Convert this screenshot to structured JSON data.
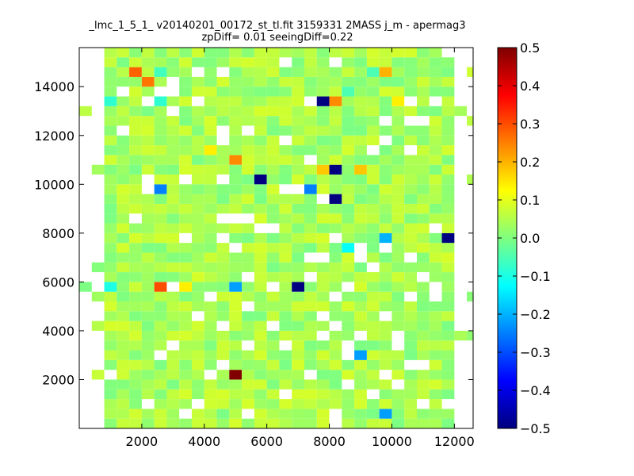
{
  "chart_data": {
    "type": "heatmap",
    "title_line1": "_lmc_1_5_1_ v20140201_00172_st_tl.fit 3159331 2MASS j_m - apermag3",
    "title_line2": "zpDiff= 0.01 seeingDiff=0.22",
    "xlabel": "",
    "ylabel": "",
    "xlim": [
      0,
      12600
    ],
    "ylim": [
      0,
      15600
    ],
    "xticks": [
      2000,
      4000,
      6000,
      8000,
      10000,
      12000
    ],
    "yticks": [
      2000,
      4000,
      6000,
      8000,
      10000,
      12000,
      14000
    ],
    "colorbar": {
      "colormap": "jet",
      "vmin": -0.5,
      "vmax": 0.5,
      "ticks": [
        -0.5,
        -0.4,
        -0.3,
        -0.2,
        -0.1,
        0.0,
        0.1,
        0.2,
        0.3,
        0.4,
        0.5
      ],
      "tick_labels": [
        "−0.5",
        "−0.4",
        "−0.3",
        "−0.2",
        "−0.1",
        "0.0",
        "0.1",
        "0.2",
        "0.3",
        "0.4",
        "0.5"
      ]
    },
    "bin_width": 400,
    "bin_height": 400,
    "x0": 0,
    "y0": 0,
    "ncols": 32,
    "nrows": 39,
    "grid": false,
    "notable_cells": [
      {
        "x": 1800,
        "y": 14600,
        "value": 0.28
      },
      {
        "x": 2200,
        "y": 14200,
        "value": 0.26
      },
      {
        "x": 7800,
        "y": 13400,
        "value": -0.5
      },
      {
        "x": 8200,
        "y": 13400,
        "value": 0.24
      },
      {
        "x": 8600,
        "y": 13800,
        "value": -0.05
      },
      {
        "x": 5000,
        "y": 11000,
        "value": 0.24
      },
      {
        "x": 4200,
        "y": 11400,
        "value": 0.14
      },
      {
        "x": 7800,
        "y": 10600,
        "value": 0.18
      },
      {
        "x": 8200,
        "y": 10600,
        "value": -0.5
      },
      {
        "x": 9000,
        "y": 10600,
        "value": 0.18
      },
      {
        "x": 5800,
        "y": 10200,
        "value": -0.5
      },
      {
        "x": 2600,
        "y": 9800,
        "value": -0.25
      },
      {
        "x": 7400,
        "y": 9800,
        "value": -0.25
      },
      {
        "x": 8200,
        "y": 9400,
        "value": -0.5
      },
      {
        "x": 9800,
        "y": 7800,
        "value": -0.2
      },
      {
        "x": 11800,
        "y": 7800,
        "value": -0.5
      },
      {
        "x": 8600,
        "y": 7400,
        "value": -0.12
      },
      {
        "x": 1000,
        "y": 5800,
        "value": -0.1
      },
      {
        "x": 2600,
        "y": 5800,
        "value": 0.3
      },
      {
        "x": 3400,
        "y": 5800,
        "value": 0.14
      },
      {
        "x": 5000,
        "y": 5800,
        "value": -0.22
      },
      {
        "x": 7000,
        "y": 5800,
        "value": -0.5
      },
      {
        "x": 9000,
        "y": 3000,
        "value": -0.22
      },
      {
        "x": 5000,
        "y": 2200,
        "value": 0.5
      },
      {
        "x": 9800,
        "y": 600,
        "value": -0.22
      },
      {
        "x": 2600,
        "y": 14600,
        "value": -0.06
      },
      {
        "x": 2600,
        "y": 13400,
        "value": -0.08
      },
      {
        "x": 1000,
        "y": 13400,
        "value": -0.08
      },
      {
        "x": 9400,
        "y": 14600,
        "value": -0.05
      },
      {
        "x": 9800,
        "y": 14600,
        "value": 0.2
      },
      {
        "x": 10200,
        "y": 13400,
        "value": 0.14
      }
    ],
    "empty_cells": [
      {
        "x": 600,
        "y": 15400
      },
      {
        "x": 600,
        "y": 14200
      },
      {
        "x": 3000,
        "y": 14200
      },
      {
        "x": 4600,
        "y": 14600
      },
      {
        "x": 6600,
        "y": 15000
      },
      {
        "x": 10600,
        "y": 13400
      },
      {
        "x": 11000,
        "y": 12600
      },
      {
        "x": 6600,
        "y": 11800
      },
      {
        "x": 9400,
        "y": 11400
      },
      {
        "x": 9800,
        "y": 11800
      },
      {
        "x": 10600,
        "y": 11400
      },
      {
        "x": 3400,
        "y": 10200
      },
      {
        "x": 6600,
        "y": 9800
      },
      {
        "x": 7000,
        "y": 9800
      },
      {
        "x": 7800,
        "y": 9400
      },
      {
        "x": 4600,
        "y": 8600
      },
      {
        "x": 5000,
        "y": 8600
      },
      {
        "x": 5400,
        "y": 8600
      },
      {
        "x": 5800,
        "y": 8200
      },
      {
        "x": 6200,
        "y": 8200
      },
      {
        "x": 4600,
        "y": 7800
      },
      {
        "x": 5000,
        "y": 7400
      },
      {
        "x": 7400,
        "y": 7000
      },
      {
        "x": 7800,
        "y": 7000
      },
      {
        "x": 9000,
        "y": 7000
      },
      {
        "x": 9400,
        "y": 6600
      },
      {
        "x": 10600,
        "y": 7000
      },
      {
        "x": 11400,
        "y": 5800
      },
      {
        "x": 8200,
        "y": 5400
      },
      {
        "x": 8600,
        "y": 5800
      },
      {
        "x": 10600,
        "y": 5400
      },
      {
        "x": 3800,
        "y": 4600
      },
      {
        "x": 5400,
        "y": 5000
      },
      {
        "x": 7800,
        "y": 4600
      },
      {
        "x": 4600,
        "y": 4200
      },
      {
        "x": 6200,
        "y": 4200
      },
      {
        "x": 2600,
        "y": 3000
      },
      {
        "x": 5400,
        "y": 3400
      },
      {
        "x": 7800,
        "y": 3800
      },
      {
        "x": 8600,
        "y": 3400
      },
      {
        "x": 10200,
        "y": 3400
      },
      {
        "x": 10600,
        "y": 2600
      },
      {
        "x": 11000,
        "y": 2600
      },
      {
        "x": 4200,
        "y": 2200
      },
      {
        "x": 4600,
        "y": 2600
      },
      {
        "x": 7400,
        "y": 2200
      },
      {
        "x": 9800,
        "y": 2200
      },
      {
        "x": 10200,
        "y": 1800
      },
      {
        "x": 2200,
        "y": 1000
      },
      {
        "x": 3800,
        "y": 1000
      },
      {
        "x": 5400,
        "y": 600
      },
      {
        "x": 8200,
        "y": 600
      },
      {
        "x": 11000,
        "y": 1000
      },
      {
        "x": 11800,
        "y": 1000
      },
      {
        "x": 6600,
        "y": 1400
      },
      {
        "x": 8600,
        "y": 1800
      },
      {
        "x": 3000,
        "y": 3400
      }
    ]
  }
}
